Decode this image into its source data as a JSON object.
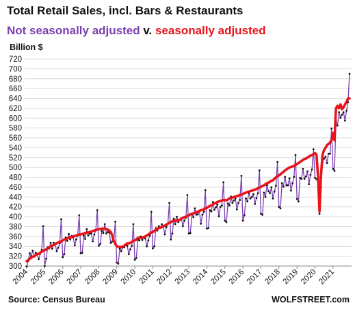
{
  "title": "Total Retail Sales, incl. Bars & Restaurants",
  "subtitle": {
    "series_a": "Not seasonally adjusted",
    "connector": "v.",
    "series_b": "seasonally adjusted"
  },
  "unit_label": "Billion $",
  "source": "Source: Census Bureau",
  "brand": "WOLFSTREET.com",
  "colors": {
    "nsa": "#7a3fb0",
    "sa": "#e8141a",
    "grid": "#d9d9d9",
    "marker": "#111111"
  },
  "chart_data": {
    "type": "line",
    "title": "Total Retail Sales, incl. Bars & Restaurants",
    "ylabel": "Billion $",
    "ylim": [
      300,
      720
    ],
    "y_ticks": [
      300,
      320,
      340,
      360,
      380,
      400,
      420,
      440,
      460,
      480,
      500,
      520,
      540,
      560,
      580,
      600,
      620,
      640,
      660,
      680,
      700,
      720
    ],
    "x_ticks": [
      "2004",
      "2005",
      "2006",
      "2007",
      "2008",
      "2009",
      "2010",
      "2011",
      "2012",
      "2013",
      "2014",
      "2015",
      "2016",
      "2017",
      "2018",
      "2019",
      "2020",
      "2021"
    ],
    "grid": true,
    "legend": "in subtitle",
    "series": [
      {
        "name": "Not seasonally adjusted",
        "color": "#7a3fb0",
        "frequency": "monthly",
        "start": "2004-01",
        "values": [
          299,
          310,
          326,
          320,
          331,
          319,
          327,
          324,
          314,
          325,
          333,
          381,
          300,
          315,
          338,
          336,
          347,
          335,
          347,
          344,
          330,
          337,
          346,
          395,
          318,
          324,
          358,
          351,
          365,
          354,
          361,
          358,
          342,
          354,
          362,
          403,
          326,
          327,
          362,
          355,
          375,
          362,
          366,
          366,
          350,
          364,
          372,
          413,
          341,
          345,
          371,
          367,
          385,
          366,
          369,
          368,
          347,
          350,
          351,
          390,
          307,
          305,
          335,
          330,
          338,
          338,
          343,
          341,
          324,
          334,
          341,
          385,
          313,
          316,
          354,
          352,
          360,
          353,
          358,
          356,
          340,
          352,
          362,
          410,
          336,
          340,
          377,
          372,
          381,
          377,
          385,
          380,
          364,
          379,
          386,
          428,
          354,
          366,
          396,
          385,
          400,
          389,
          393,
          397,
          381,
          392,
          398,
          444,
          366,
          367,
          405,
          399,
          417,
          404,
          405,
          412,
          386,
          404,
          410,
          454,
          376,
          377,
          413,
          411,
          430,
          414,
          419,
          425,
          401,
          420,
          423,
          470,
          392,
          389,
          427,
          423,
          441,
          428,
          433,
          437,
          415,
          428,
          434,
          483,
          392,
          403,
          437,
          431,
          448,
          437,
          440,
          446,
          426,
          438,
          448,
          494,
          406,
          404,
          449,
          440,
          464,
          452,
          448,
          460,
          437,
          451,
          463,
          511,
          420,
          417,
          468,
          461,
          481,
          464,
          464,
          478,
          453,
          468,
          481,
          525,
          436,
          431,
          479,
          477,
          497,
          477,
          482,
          492,
          466,
          485,
          496,
          537,
          479,
          476,
          478,
          406,
          460,
          510,
          518,
          522,
          509,
          528,
          528,
          579,
          497,
          493,
          594,
          585,
          612,
          601,
          607,
          612,
          595,
          615,
          633,
          690
        ]
      },
      {
        "name": "seasonally adjusted",
        "color": "#e8141a",
        "frequency": "monthly",
        "start": "2004-01",
        "values": [
          310,
          312,
          315,
          317,
          319,
          320,
          322,
          324,
          325,
          327,
          329,
          331,
          332,
          334,
          336,
          338,
          340,
          341,
          343,
          345,
          346,
          348,
          349,
          350,
          352,
          354,
          355,
          356,
          357,
          358,
          359,
          360,
          361,
          362,
          363,
          364,
          364,
          365,
          366,
          367,
          368,
          368,
          369,
          370,
          371,
          372,
          373,
          374,
          375,
          375,
          376,
          376,
          376,
          375,
          374,
          372,
          369,
          362,
          351,
          345,
          340,
          339,
          339,
          338,
          340,
          341,
          344,
          346,
          346,
          347,
          349,
          351,
          352,
          354,
          357,
          358,
          357,
          358,
          359,
          360,
          362,
          364,
          366,
          368,
          369,
          371,
          374,
          376,
          377,
          378,
          379,
          381,
          382,
          384,
          386,
          388,
          389,
          391,
          392,
          393,
          392,
          393,
          394,
          396,
          398,
          399,
          400,
          402,
          403,
          405,
          406,
          407,
          408,
          409,
          410,
          412,
          413,
          414,
          415,
          417,
          418,
          420,
          422,
          423,
          425,
          427,
          428,
          430,
          431,
          432,
          433,
          434,
          434,
          433,
          435,
          437,
          438,
          439,
          440,
          441,
          442,
          443,
          444,
          445,
          446,
          448,
          449,
          450,
          451,
          452,
          453,
          454,
          455,
          456,
          458,
          459,
          461,
          462,
          464,
          466,
          468,
          469,
          471,
          473,
          474,
          477,
          480,
          482,
          484,
          486,
          489,
          491,
          494,
          496,
          498,
          500,
          501,
          502,
          503,
          505,
          507,
          509,
          511,
          513,
          515,
          517,
          518,
          520,
          522,
          524,
          525,
          527,
          529,
          526,
          483,
          411,
          485,
          525,
          535,
          540,
          545,
          548,
          550,
          556,
          570,
          555,
          620,
          625,
          620,
          628,
          618,
          622,
          628,
          633,
          640,
          640
        ]
      }
    ]
  }
}
